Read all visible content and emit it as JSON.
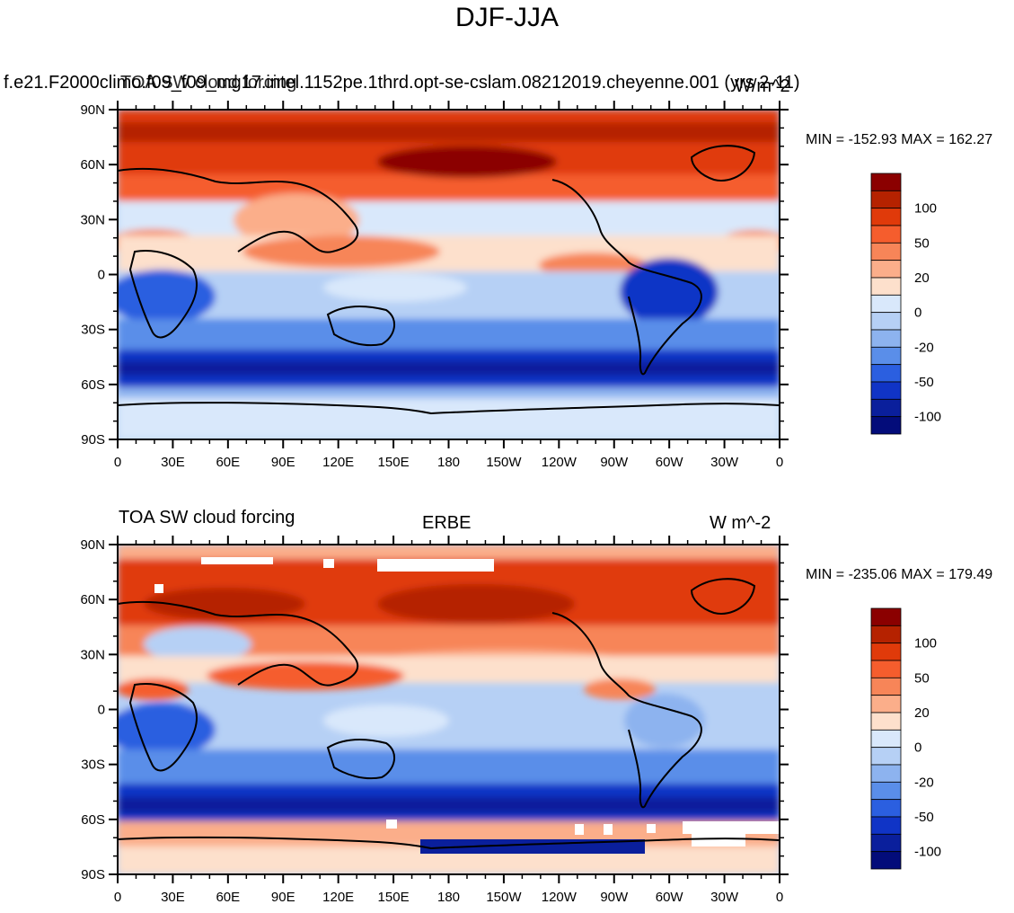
{
  "title": "DJF-JJA",
  "lat_labels": [
    "90N",
    "60N",
    "30N",
    "0",
    "30S",
    "60S",
    "90S"
  ],
  "lon_labels": [
    "0",
    "30E",
    "60E",
    "90E",
    "120E",
    "150E",
    "180",
    "150W",
    "120W",
    "90W",
    "60W",
    "30W",
    "0"
  ],
  "colorbar": {
    "labels": [
      "100",
      "50",
      "20",
      "0",
      "-20",
      "-50",
      "-100"
    ],
    "colors": [
      "#8b0000",
      "#b52200",
      "#e03a0a",
      "#f55d2d",
      "#f78558",
      "#fbae8a",
      "#fde0cc",
      "#d9e8fb",
      "#b6d0f5",
      "#8db3ef",
      "#5a8ee9",
      "#2b5fe0",
      "#1034c6",
      "#0a1f9c",
      "#030c7a"
    ]
  },
  "panels": [
    {
      "id": "top",
      "left_title": "f.e21.F2000climo.f09_f09_mg17.intel.1152pe.1thrd.opt-se-cslam.08212019.cheyenne.001 (yrs 2-11)",
      "overlay_title": "TOA SW cloud forcing",
      "center_title": "",
      "units": "W/m^2",
      "min_label": "MIN = -152.93",
      "max_label": "MAX = 162.27"
    },
    {
      "id": "bottom",
      "left_title": "TOA SW cloud forcing",
      "center_title": "ERBE",
      "units": "W m^-2",
      "min_label": "MIN = -235.06",
      "max_label": "MAX = 179.49"
    }
  ]
}
